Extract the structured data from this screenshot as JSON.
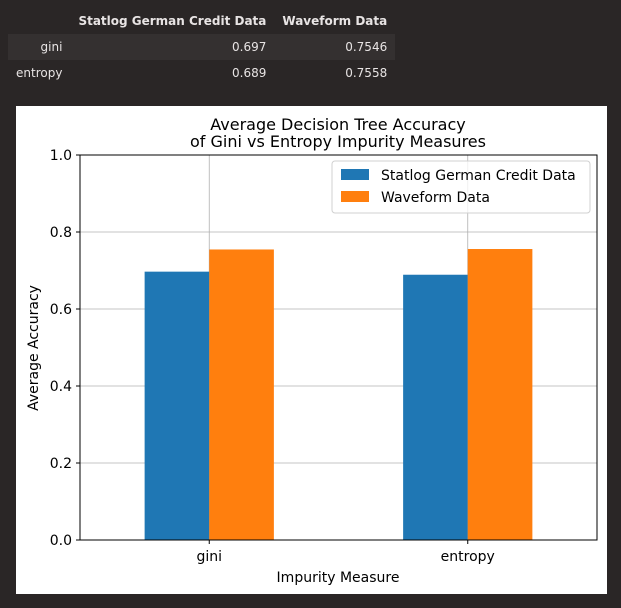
{
  "table": {
    "columns": [
      "Statlog German Credit Data",
      "Waveform Data"
    ],
    "rows": [
      {
        "index": "gini",
        "values": [
          "0.697",
          "0.7546"
        ]
      },
      {
        "index": "entropy",
        "values": [
          "0.689",
          "0.7558"
        ]
      }
    ]
  },
  "chart_data": {
    "type": "bar",
    "title_line1": "Average Decision Tree Accuracy",
    "title_line2": "of Gini vs Entropy Impurity Measures",
    "xlabel": "Impurity Measure",
    "ylabel": "Average Accuracy",
    "categories": [
      "gini",
      "entropy"
    ],
    "series": [
      {
        "name": "Statlog German Credit Data",
        "values": [
          0.697,
          0.689
        ],
        "color": "#1f77b4"
      },
      {
        "name": "Waveform Data",
        "values": [
          0.7546,
          0.7558
        ],
        "color": "#ff7f0e"
      }
    ],
    "ylim": [
      0.0,
      1.0
    ],
    "yticks": [
      "0.0",
      "0.2",
      "0.4",
      "0.6",
      "0.8",
      "1.0"
    ],
    "grid": true,
    "legend_position": "top-right"
  }
}
